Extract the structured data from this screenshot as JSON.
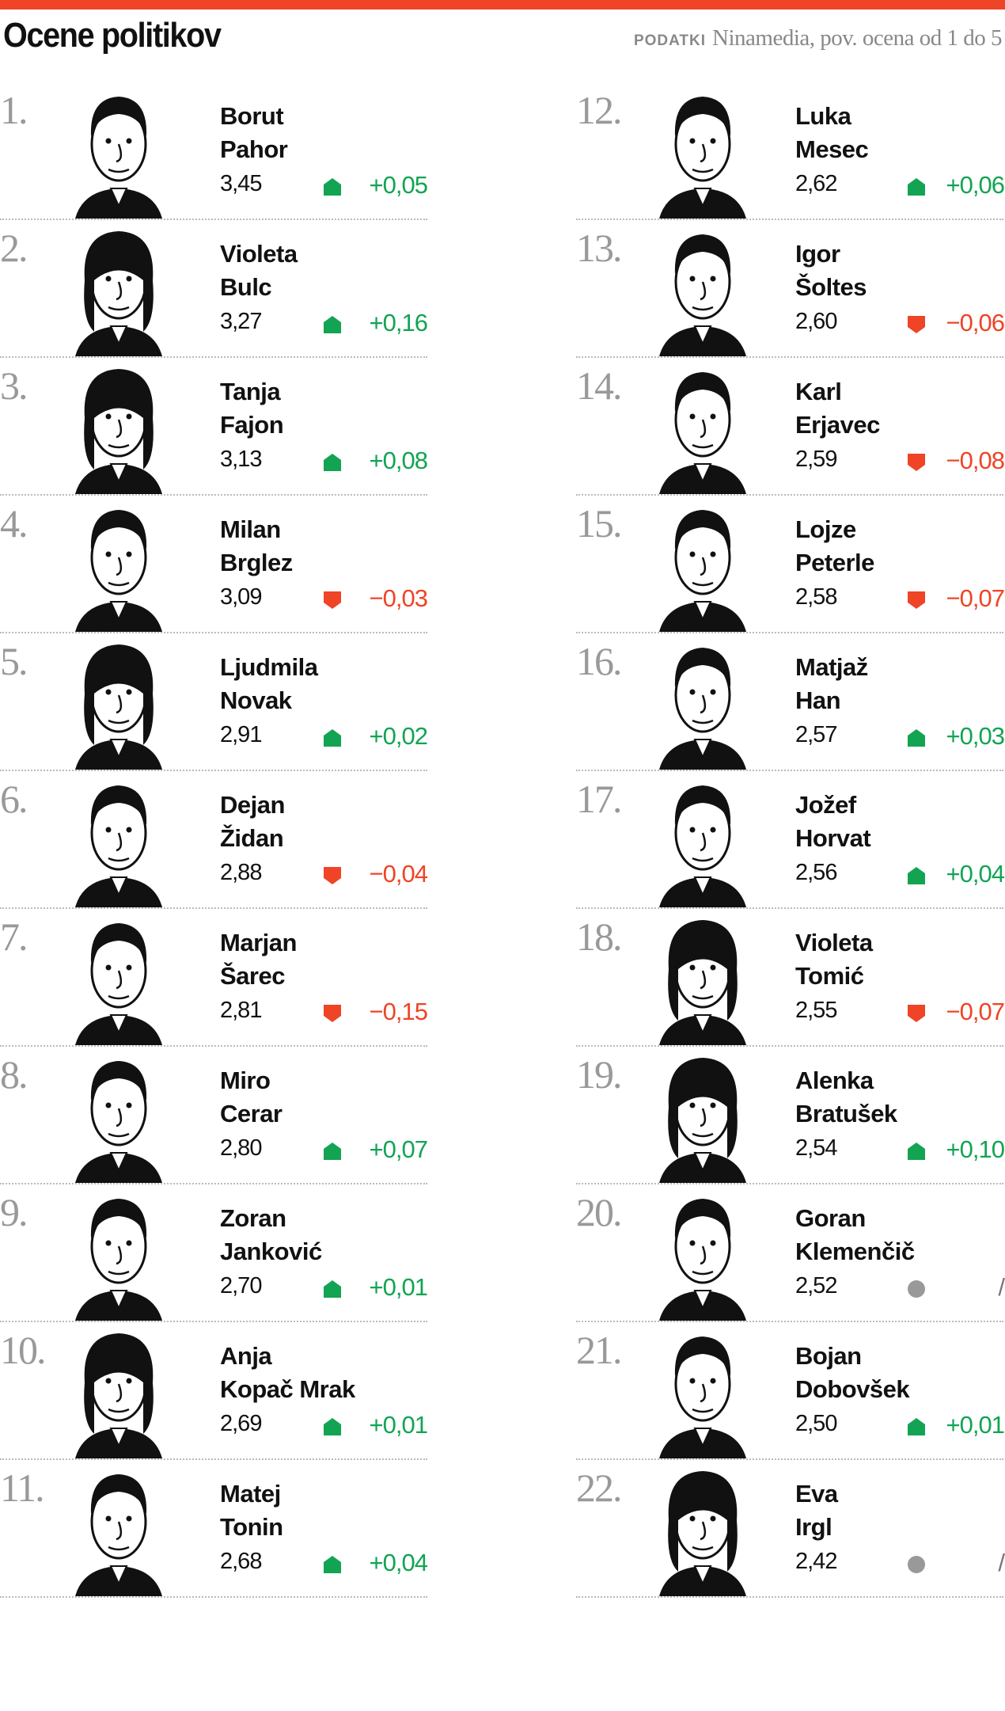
{
  "title": "Ocene politikov",
  "source": {
    "label": "PODATKI",
    "text": "Ninamedia, pov. ocena od 1 do 5"
  },
  "colors": {
    "accent": "#ef4426",
    "up": "#12a453",
    "down": "#ef4426",
    "neutral": "#999999"
  },
  "politicians": [
    {
      "rank": "1.",
      "first": "Borut",
      "last": "Pahor",
      "score": "3,45",
      "trend": "up",
      "change": "+0,05"
    },
    {
      "rank": "2.",
      "first": "Violeta",
      "last": "Bulc",
      "score": "3,27",
      "trend": "up",
      "change": "+0,16"
    },
    {
      "rank": "3.",
      "first": "Tanja",
      "last": "Fajon",
      "score": "3,13",
      "trend": "up",
      "change": "+0,08"
    },
    {
      "rank": "4.",
      "first": "Milan",
      "last": "Brglez",
      "score": "3,09",
      "trend": "down",
      "change": "−0,03"
    },
    {
      "rank": "5.",
      "first": "Ljudmila",
      "last": "Novak",
      "score": "2,91",
      "trend": "up",
      "change": "+0,02"
    },
    {
      "rank": "6.",
      "first": "Dejan",
      "last": "Židan",
      "score": "2,88",
      "trend": "down",
      "change": "−0,04"
    },
    {
      "rank": "7.",
      "first": "Marjan",
      "last": "Šarec",
      "score": "2,81",
      "trend": "down",
      "change": "−0,15"
    },
    {
      "rank": "8.",
      "first": "Miro",
      "last": "Cerar",
      "score": "2,80",
      "trend": "up",
      "change": "+0,07"
    },
    {
      "rank": "9.",
      "first": "Zoran",
      "last": "Janković",
      "score": "2,70",
      "trend": "up",
      "change": "+0,01"
    },
    {
      "rank": "10.",
      "first": "Anja",
      "last": "Kopač Mrak",
      "score": "2,69",
      "trend": "up",
      "change": "+0,01"
    },
    {
      "rank": "11.",
      "first": "Matej",
      "last": "Tonin",
      "score": "2,68",
      "trend": "up",
      "change": "+0,04"
    },
    {
      "rank": "12.",
      "first": "Luka",
      "last": "Mesec",
      "score": "2,62",
      "trend": "up",
      "change": "+0,06"
    },
    {
      "rank": "13.",
      "first": "Igor",
      "last": "Šoltes",
      "score": "2,60",
      "trend": "down",
      "change": "−0,06"
    },
    {
      "rank": "14.",
      "first": "Karl",
      "last": "Erjavec",
      "score": "2,59",
      "trend": "down",
      "change": "−0,08"
    },
    {
      "rank": "15.",
      "first": "Lojze",
      "last": "Peterle",
      "score": "2,58",
      "trend": "down",
      "change": "−0,07"
    },
    {
      "rank": "16.",
      "first": "Matjaž",
      "last": "Han",
      "score": "2,57",
      "trend": "up",
      "change": "+0,03"
    },
    {
      "rank": "17.",
      "first": "Jožef",
      "last": "Horvat",
      "score": "2,56",
      "trend": "up",
      "change": "+0,04"
    },
    {
      "rank": "18.",
      "first": "Violeta",
      "last": "Tomić",
      "score": "2,55",
      "trend": "down",
      "change": "−0,07"
    },
    {
      "rank": "19.",
      "first": "Alenka",
      "last": "Bratušek",
      "score": "2,54",
      "trend": "up",
      "change": "+0,10"
    },
    {
      "rank": "20.",
      "first": "Goran",
      "last": "Klemenčič",
      "score": "2,52",
      "trend": "neutral",
      "change": "/"
    },
    {
      "rank": "21.",
      "first": "Bojan",
      "last": "Dobovšek",
      "score": "2,50",
      "trend": "up",
      "change": "+0,01"
    },
    {
      "rank": "22.",
      "first": "Eva",
      "last": "Irgl",
      "score": "2,42",
      "trend": "neutral",
      "change": "/"
    }
  ]
}
